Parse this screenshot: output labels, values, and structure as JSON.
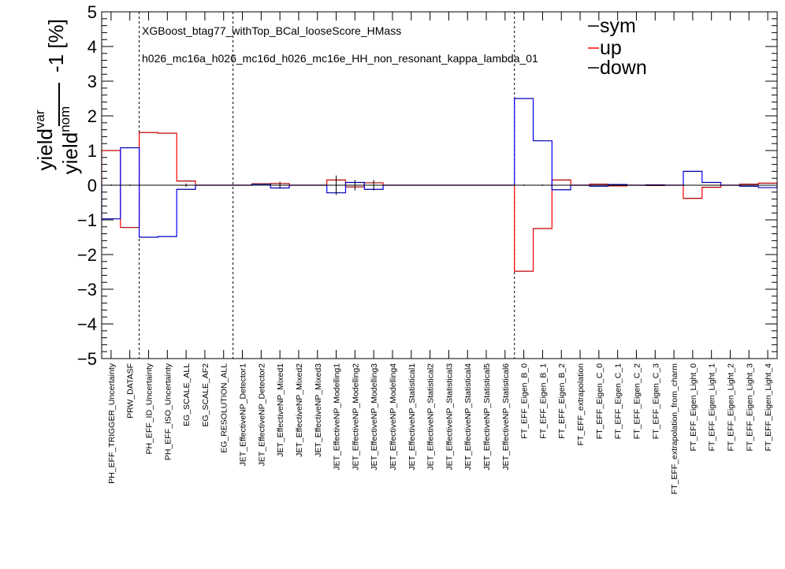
{
  "chart_data": {
    "type": "step-histogram",
    "annotation_lines": [
      "XGBoost_btag77_withTop_BCal_looseScore_HMass",
      "h026_mc16a_h026_mc16d_h026_mc16e_HH_non_resonant_kappa_lambda_01"
    ],
    "ylabel": {
      "numerator": "yield",
      "numerator_sup": "var",
      "denominator": "yield",
      "denominator_sup": "nom",
      "suffix": "-1 [%]"
    },
    "ylim": [
      -5,
      5
    ],
    "yticks": [
      {
        "v": 5,
        "label": "5"
      },
      {
        "v": 4,
        "label": "4"
      },
      {
        "v": 3,
        "label": "3"
      },
      {
        "v": 2,
        "label": "2"
      },
      {
        "v": 1,
        "label": "1"
      },
      {
        "v": 0,
        "label": "0"
      },
      {
        "v": -1,
        "label": "−1"
      },
      {
        "v": -2,
        "label": "−2"
      },
      {
        "v": -3,
        "label": "−3"
      },
      {
        "v": -4,
        "label": "−4"
      },
      {
        "v": -5,
        "label": "−5"
      }
    ],
    "categories": [
      "PH_EFF_TRIGGER_Uncertainty",
      "PRW_DATASF",
      "PH_EFF_ID_Uncertainty",
      "PH_EFF_ISO_Uncertainty",
      "EG_SCALE_ALL",
      "EG_SCALE_AF2",
      "EG_RESOLUTION_ALL",
      "JET_EffectiveNP_Detector1",
      "JET_EffectiveNP_Detector2",
      "JET_EffectiveNP_Mixed1",
      "JET_EffectiveNP_Mixed2",
      "JET_EffectiveNP_Mixed3",
      "JET_EffectiveNP_Modelling1",
      "JET_EffectiveNP_Modelling2",
      "JET_EffectiveNP_Modelling3",
      "JET_EffectiveNP_Modelling4",
      "JET_EffectiveNP_Statistical1",
      "JET_EffectiveNP_Statistical2",
      "JET_EffectiveNP_Statistical3",
      "JET_EffectiveNP_Statistical4",
      "JET_EffectiveNP_Statistical5",
      "JET_EffectiveNP_Statistical6",
      "FT_EFF_Eigen_B_0",
      "FT_EFF_Eigen_B_1",
      "FT_EFF_Eigen_B_2",
      "FT_EFF_extrapolation",
      "FT_EFF_Eigen_C_0",
      "FT_EFF_Eigen_C_1",
      "FT_EFF_Eigen_C_2",
      "FT_EFF_Eigen_C_3",
      "FT_EFF_extrapolation_from_charm",
      "FT_EFF_Eigen_Light_0",
      "FT_EFF_Eigen_Light_1",
      "FT_EFF_Eigen_Light_2",
      "FT_EFF_Eigen_Light_3",
      "FT_EFF_Eigen_Light_4"
    ],
    "series": [
      {
        "name": "sym",
        "color": "#000000",
        "values": [
          0,
          0,
          0,
          0,
          0,
          0,
          0,
          0,
          0,
          0,
          0,
          0,
          0,
          0,
          0,
          0,
          0,
          0,
          0,
          0,
          0,
          0,
          0,
          0,
          0,
          0,
          0,
          0,
          0,
          0,
          0,
          0,
          0,
          0,
          0,
          0
        ]
      },
      {
        "name": "up",
        "color": "#ff0000",
        "values": [
          1.0,
          -1.22,
          1.52,
          1.5,
          0.12,
          0,
          0,
          0,
          0.04,
          0.05,
          0,
          0,
          0.15,
          -0.05,
          0.07,
          0,
          0,
          0,
          0,
          0,
          0,
          0,
          -2.48,
          -1.25,
          0.15,
          0,
          0.03,
          -0.02,
          0,
          -0.01,
          0,
          -0.38,
          -0.06,
          0,
          0.03,
          0.06
        ]
      },
      {
        "name": "down",
        "color": "#0000ff",
        "values": [
          -0.97,
          1.08,
          -1.5,
          -1.48,
          -0.12,
          0,
          0,
          0,
          0.03,
          -0.08,
          0,
          0,
          -0.22,
          0.08,
          -0.12,
          0,
          0,
          0,
          0,
          0,
          0,
          0,
          2.5,
          1.28,
          -0.13,
          0,
          -0.03,
          0.02,
          0,
          0.01,
          0,
          0.4,
          0.08,
          0,
          -0.03,
          -0.07
        ]
      }
    ],
    "sym_error_bars": [
      0.02,
      0.02,
      0.01,
      0.01,
      0.05,
      0,
      0,
      0,
      0,
      0.1,
      0,
      0,
      0.28,
      0.15,
      0.15,
      0,
      0,
      0,
      0,
      0,
      0,
      0,
      0.02,
      0.02,
      0,
      0,
      0,
      0,
      0,
      0,
      0,
      0,
      0,
      0,
      0,
      0
    ],
    "vertical_dashed_after": [
      2,
      7,
      22
    ],
    "legend_placement": "top-right",
    "grid": false
  }
}
